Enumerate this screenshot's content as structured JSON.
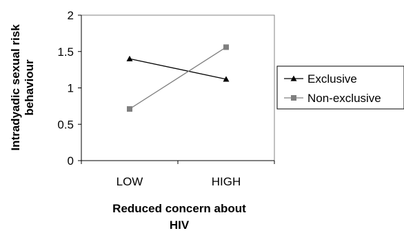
{
  "chart_data": {
    "type": "line",
    "categories": [
      "LOW",
      "HIGH"
    ],
    "series": [
      {
        "name": "Exclusive",
        "values": [
          1.4,
          1.12
        ],
        "color": "#000000",
        "marker": "triangle"
      },
      {
        "name": "Non-exclusive",
        "values": [
          0.71,
          1.56
        ],
        "color": "#7f7f7f",
        "marker": "square"
      }
    ],
    "ylim": [
      0,
      2
    ],
    "yticks": [
      "0",
      "0.5",
      "1",
      "1.5",
      "2"
    ],
    "ylabel_lines": [
      "Intradyadic sexual risk",
      "behaviour"
    ],
    "xlabel_lines": [
      "Reduced concern about",
      "HIV"
    ],
    "grid": false,
    "legend_position": "right"
  }
}
